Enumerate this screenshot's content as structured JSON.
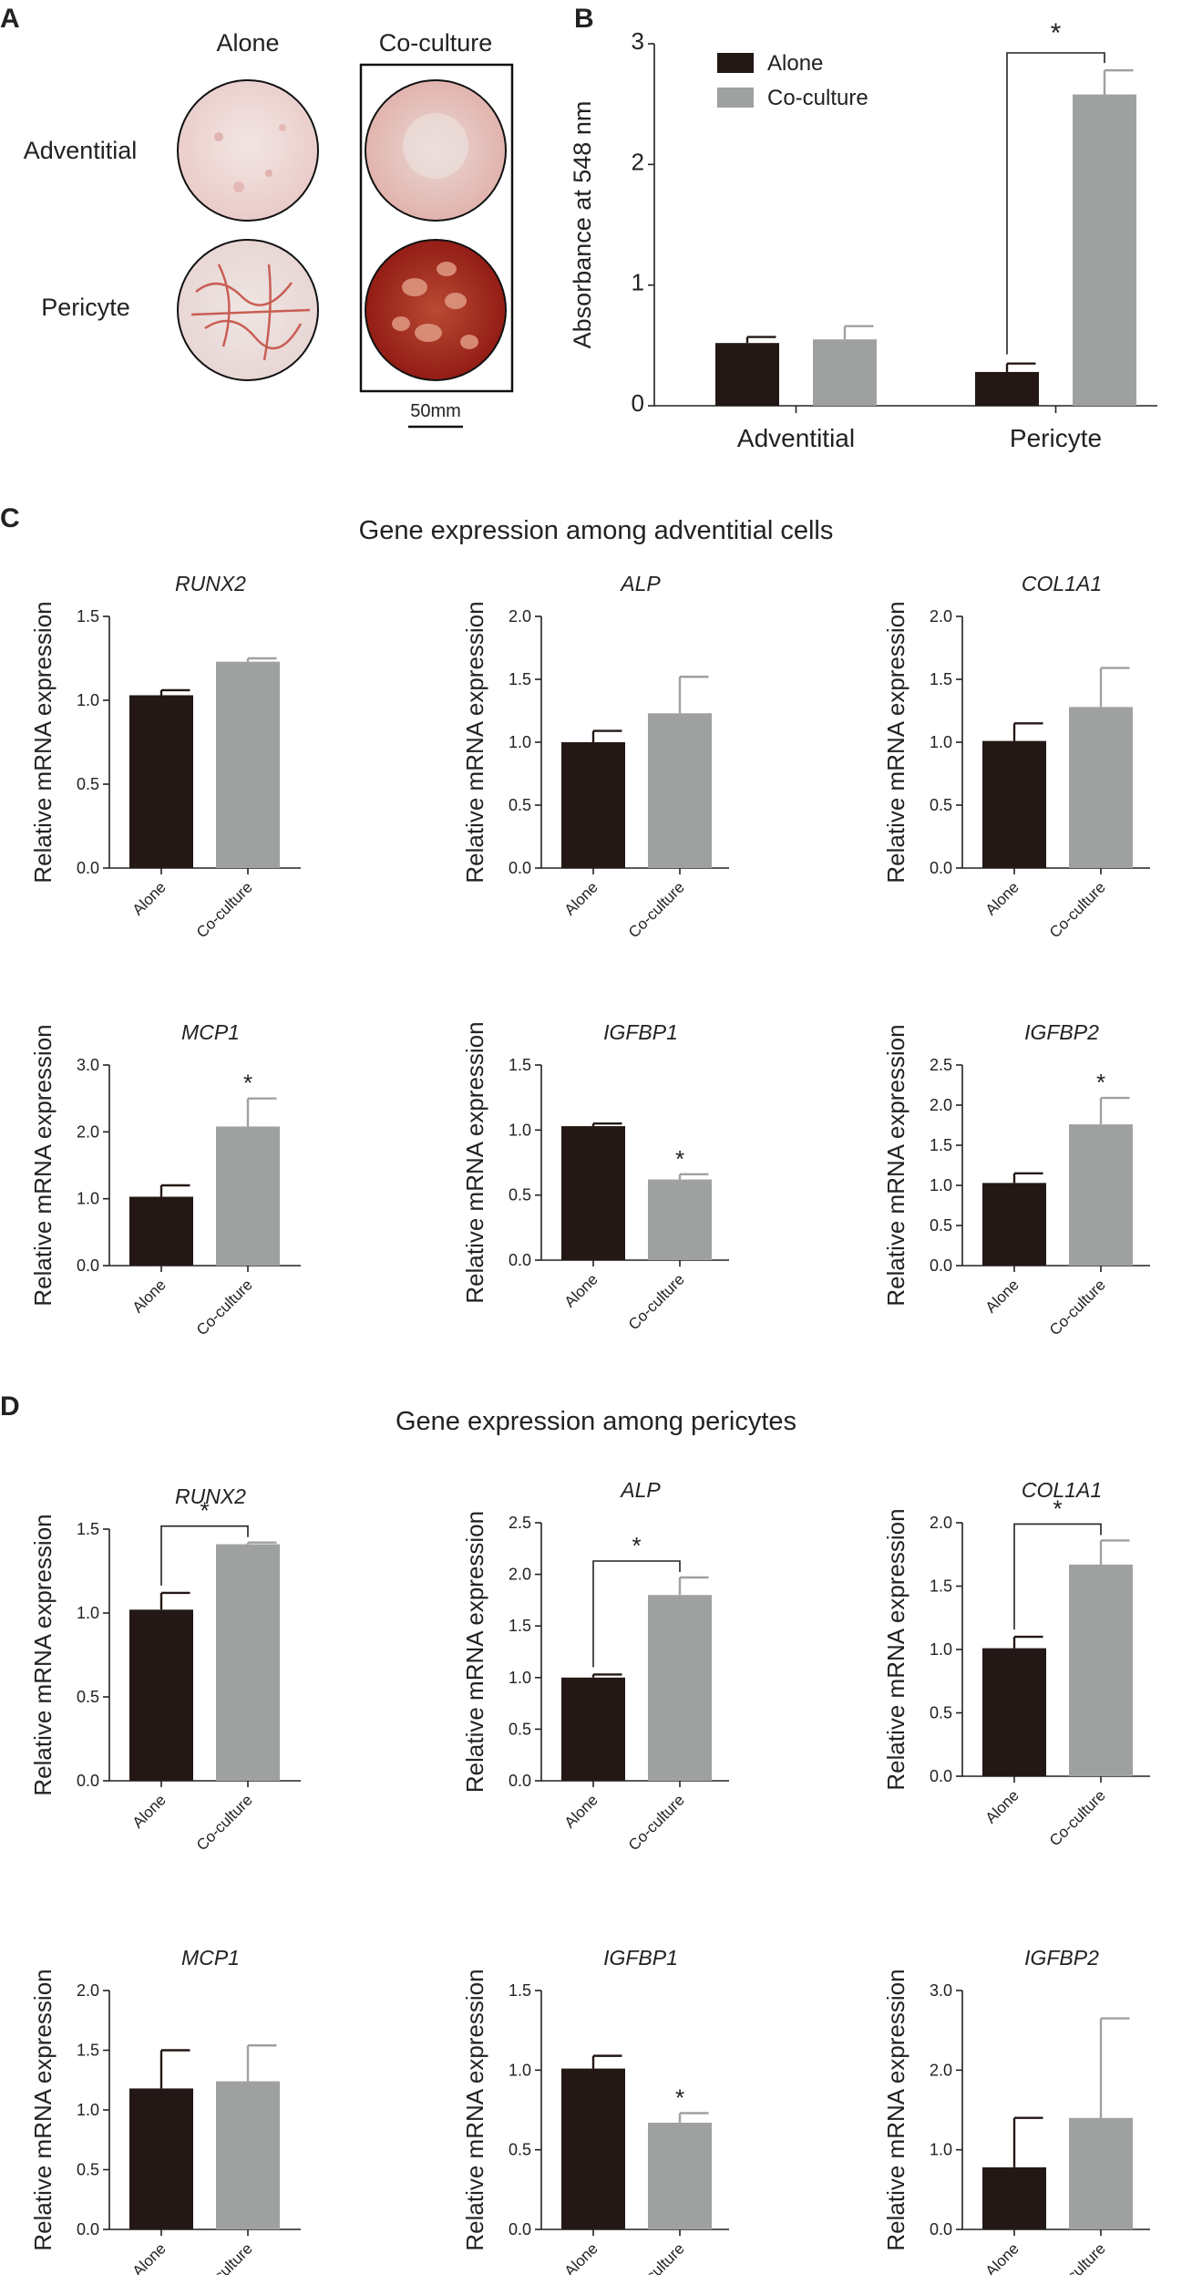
{
  "colors": {
    "alone": "#231815",
    "coculture": "#9fa0a0",
    "axis": "#222222"
  },
  "panels": {
    "A": {
      "letter": "A",
      "col_headers": [
        "Alone",
        "Co-culture"
      ],
      "row_labels": [
        "Adventitial",
        "Pericyte"
      ],
      "scale_label": "50mm",
      "images": [
        {
          "row": "Adventitial",
          "col": "Alone",
          "stain": "faint pink"
        },
        {
          "row": "Adventitial",
          "col": "Co-culture",
          "stain": "pink"
        },
        {
          "row": "Pericyte",
          "col": "Alone",
          "stain": "red network, light"
        },
        {
          "row": "Pericyte",
          "col": "Co-culture",
          "stain": "dense dark red network"
        }
      ]
    },
    "B": {
      "letter": "B"
    },
    "C": {
      "letter": "C",
      "title": "Gene expression among adventitial cells"
    },
    "D": {
      "letter": "D",
      "title": "Gene expression among pericytes"
    }
  },
  "chart_data": [
    {
      "id": "B",
      "type": "bar",
      "title": "",
      "categories": [
        "Adventitial",
        "Pericyte"
      ],
      "series": [
        {
          "name": "Alone",
          "values": [
            0.52,
            0.28
          ],
          "errors": [
            0.05,
            0.07
          ]
        },
        {
          "name": "Co-culture",
          "values": [
            0.55,
            2.58
          ],
          "errors": [
            0.11,
            0.2
          ]
        }
      ],
      "ylabel": "Absorbance at 548 nm",
      "ylim": [
        0,
        3
      ],
      "yticks": [
        "0",
        "1",
        "2",
        "3"
      ],
      "legend": [
        "Alone",
        "Co-culture"
      ],
      "legend_position": "top-left",
      "significance": [
        {
          "label": "*",
          "between": "Pericyte Alone vs Co-culture"
        }
      ]
    },
    {
      "id": "C1",
      "type": "bar",
      "title": "RUNX2",
      "categories": [
        "Alone",
        "Co-culture"
      ],
      "values": [
        1.03,
        1.23
      ],
      "errors": [
        0.03,
        0.02
      ],
      "ylabel": "Relative mRNA expression",
      "ylim": [
        0,
        1.5
      ],
      "yticks": [
        "0.0",
        "0.5",
        "1.0",
        "1.5"
      ],
      "significance": []
    },
    {
      "id": "C2",
      "type": "bar",
      "title": "ALP",
      "categories": [
        "Alone",
        "Co-culture"
      ],
      "values": [
        1.0,
        1.23
      ],
      "errors": [
        0.09,
        0.29
      ],
      "ylabel": "Relative mRNA expression",
      "ylim": [
        0,
        2.0
      ],
      "yticks": [
        "0.0",
        "0.5",
        "1.0",
        "1.5",
        "2.0"
      ],
      "significance": []
    },
    {
      "id": "C3",
      "type": "bar",
      "title": "COL1A1",
      "categories": [
        "Alone",
        "Co-culture"
      ],
      "values": [
        1.01,
        1.28
      ],
      "errors": [
        0.14,
        0.31
      ],
      "ylabel": "Relative mRNA expression",
      "ylim": [
        0,
        2.0
      ],
      "yticks": [
        "0.0",
        "0.5",
        "1.0",
        "1.5",
        "2.0"
      ],
      "significance": []
    },
    {
      "id": "C4",
      "type": "bar",
      "title": "MCP1",
      "categories": [
        "Alone",
        "Co-culture"
      ],
      "values": [
        1.03,
        2.08
      ],
      "errors": [
        0.17,
        0.42
      ],
      "ylabel": "Relative mRNA expression",
      "ylim": [
        0,
        3.0
      ],
      "yticks": [
        "0.0",
        "1.0",
        "2.0",
        "3.0"
      ],
      "significance": [
        {
          "label": "*",
          "on": "Co-culture"
        }
      ]
    },
    {
      "id": "C5",
      "type": "bar",
      "title": "IGFBP1",
      "categories": [
        "Alone",
        "Co-culture"
      ],
      "values": [
        1.03,
        0.62
      ],
      "errors": [
        0.02,
        0.04
      ],
      "ylabel": "Relative mRNA expression",
      "ylim": [
        0,
        1.5
      ],
      "yticks": [
        "0.0",
        "0.5",
        "1.0",
        "1.5"
      ],
      "significance": [
        {
          "label": "*",
          "on": "Co-culture"
        }
      ]
    },
    {
      "id": "C6",
      "type": "bar",
      "title": "IGFBP2",
      "categories": [
        "Alone",
        "Co-culture"
      ],
      "values": [
        1.03,
        1.76
      ],
      "errors": [
        0.12,
        0.33
      ],
      "ylabel": "Relative mRNA expression",
      "ylim": [
        0,
        2.5
      ],
      "yticks": [
        "0.0",
        "0.5",
        "1.0",
        "1.5",
        "2.0",
        "2.5"
      ],
      "significance": [
        {
          "label": "*",
          "on": "Co-culture"
        }
      ]
    },
    {
      "id": "D1",
      "type": "bar",
      "title": "RUNX2",
      "categories": [
        "Alone",
        "Co-culture"
      ],
      "values": [
        1.02,
        1.41
      ],
      "errors": [
        0.1,
        0.01
      ],
      "ylabel": "Relative mRNA expression",
      "ylim": [
        0,
        1.5
      ],
      "yticks": [
        "0.0",
        "0.5",
        "1.0",
        "1.5"
      ],
      "significance": [
        {
          "label": "*",
          "bracket": true
        }
      ]
    },
    {
      "id": "D2",
      "type": "bar",
      "title": "ALP",
      "categories": [
        "Alone",
        "Co-culture"
      ],
      "values": [
        1.0,
        1.8
      ],
      "errors": [
        0.03,
        0.17
      ],
      "ylabel": "Relative mRNA expression",
      "ylim": [
        0,
        2.5
      ],
      "yticks": [
        "0.0",
        "0.5",
        "1.0",
        "1.5",
        "2.0",
        "2.5"
      ],
      "significance": [
        {
          "label": "*",
          "bracket": true
        }
      ]
    },
    {
      "id": "D3",
      "type": "bar",
      "title": "COL1A1",
      "categories": [
        "Alone",
        "Co-culture"
      ],
      "values": [
        1.01,
        1.67
      ],
      "errors": [
        0.09,
        0.19
      ],
      "ylabel": "Relative mRNA expression",
      "ylim": [
        0,
        2.0
      ],
      "yticks": [
        "0.0",
        "0.5",
        "1.0",
        "1.5",
        "2.0"
      ],
      "significance": [
        {
          "label": "*",
          "bracket": true
        }
      ]
    },
    {
      "id": "D4",
      "type": "bar",
      "title": "MCP1",
      "categories": [
        "Alone",
        "Co-culture"
      ],
      "values": [
        1.18,
        1.24
      ],
      "errors": [
        0.32,
        0.3
      ],
      "ylabel": "Relative mRNA expression",
      "ylim": [
        0,
        2.0
      ],
      "yticks": [
        "0.0",
        "0.5",
        "1.0",
        "1.5",
        "2.0"
      ],
      "significance": []
    },
    {
      "id": "D5",
      "type": "bar",
      "title": "IGFBP1",
      "categories": [
        "Alone",
        "Co-culture"
      ],
      "values": [
        1.01,
        0.67
      ],
      "errors": [
        0.08,
        0.06
      ],
      "ylabel": "Relative mRNA expression",
      "ylim": [
        0,
        1.5
      ],
      "yticks": [
        "0.0",
        "0.5",
        "1.0",
        "1.5"
      ],
      "significance": [
        {
          "label": "*",
          "on": "Co-culture"
        }
      ]
    },
    {
      "id": "D6",
      "type": "bar",
      "title": "IGFBP2",
      "categories": [
        "Alone",
        "Co-culture"
      ],
      "values": [
        0.78,
        1.4
      ],
      "errors": [
        0.62,
        1.25
      ],
      "ylabel": "Relative mRNA expression",
      "ylim": [
        0,
        3.0
      ],
      "yticks": [
        "0.0",
        "1.0",
        "2.0",
        "3.0"
      ],
      "significance": []
    }
  ]
}
